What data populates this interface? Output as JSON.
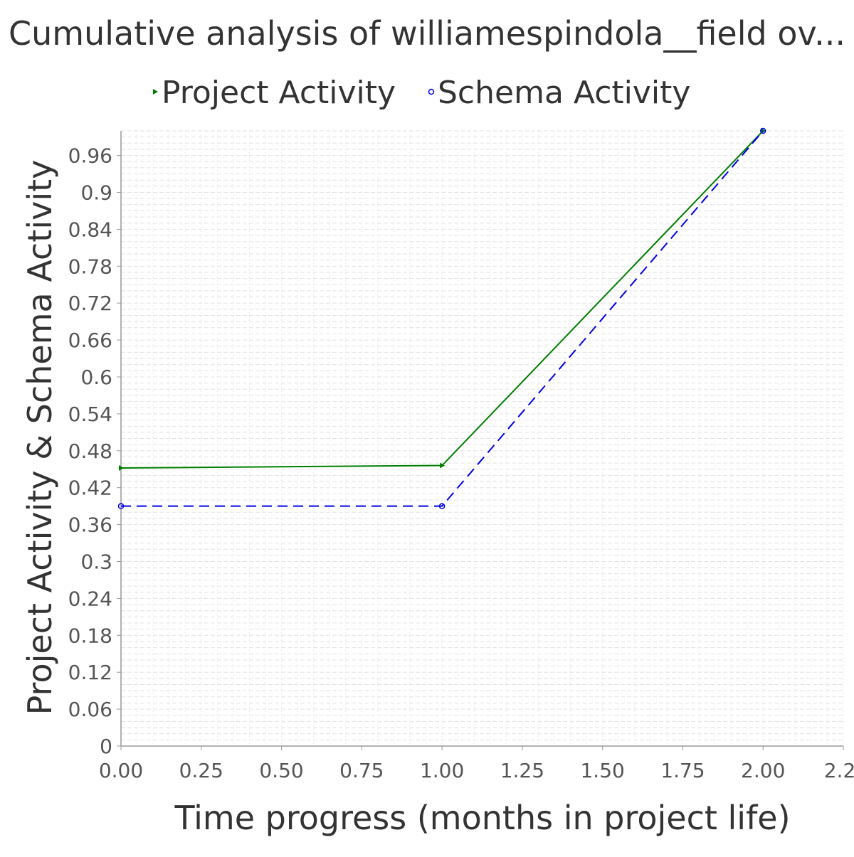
{
  "chart_data": {
    "type": "line",
    "title": "Cumulative analysis of williamespindola__field ov...",
    "xlabel": "Time progress (months in project life)",
    "ylabel": "Project Activity & Schema Activity",
    "xlim": [
      0,
      2.25
    ],
    "ylim": [
      0,
      1.0
    ],
    "x_ticks": [
      "0.00",
      "0.25",
      "0.50",
      "0.75",
      "1.00",
      "1.25",
      "1.50",
      "1.75",
      "2.00",
      "2.2"
    ],
    "x_tick_values": [
      0,
      0.25,
      0.5,
      0.75,
      1.0,
      1.25,
      1.5,
      1.75,
      2.0,
      2.25
    ],
    "y_ticks": [
      "0",
      "0.06",
      "0.12",
      "0.18",
      "0.24",
      "0.3",
      "0.36",
      "0.42",
      "0.48",
      "0.54",
      "0.6",
      "0.66",
      "0.72",
      "0.78",
      "0.84",
      "0.9",
      "0.96"
    ],
    "y_tick_values": [
      0,
      0.06,
      0.12,
      0.18,
      0.24,
      0.3,
      0.36,
      0.42,
      0.48,
      0.54,
      0.6,
      0.66,
      0.72,
      0.78,
      0.84,
      0.9,
      0.96
    ],
    "grid": true,
    "legend_position": "top-center",
    "series": [
      {
        "name": "Project Activity",
        "color": "#007f00",
        "dash": "solid",
        "marker": "triangle-right",
        "x": [
          0,
          1.0,
          2.0
        ],
        "y": [
          0.452,
          0.456,
          1.0
        ]
      },
      {
        "name": "Schema Activity",
        "color": "#0000ee",
        "dash": "dashed",
        "marker": "circle",
        "x": [
          0,
          1.0,
          2.0
        ],
        "y": [
          0.39,
          0.39,
          1.0
        ]
      }
    ]
  }
}
